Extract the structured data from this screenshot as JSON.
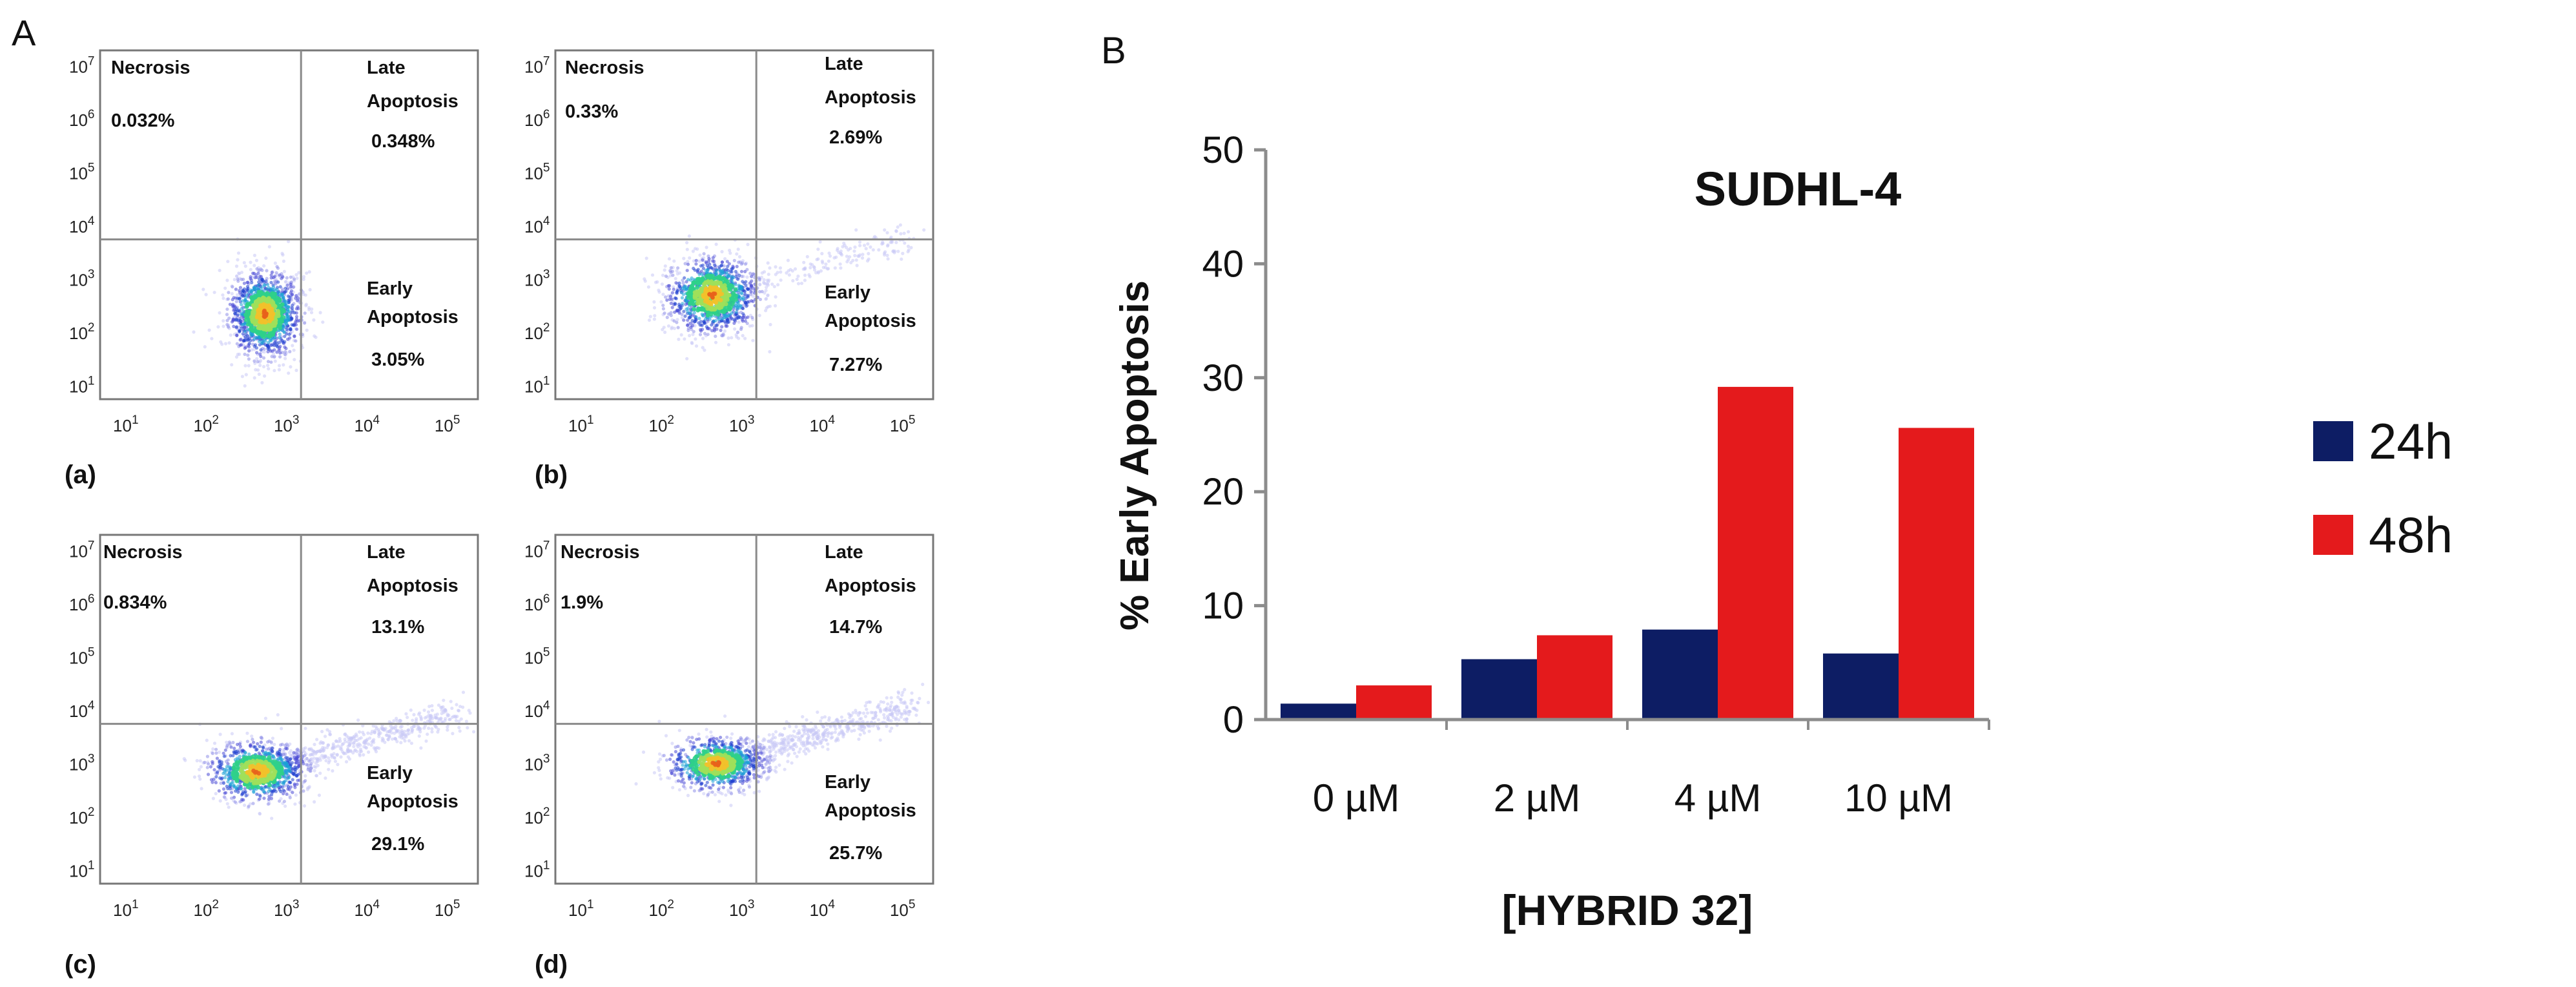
{
  "panel_a": {
    "label": "A",
    "scatter_plots": [
      {
        "sublabel": "(a)",
        "necrosis": {
          "title": "Necrosis",
          "value": "0.032%"
        },
        "late": {
          "line1": "Late",
          "line2": "Apoptosis",
          "value": "0.348%"
        },
        "early": {
          "line1": "Early",
          "line2": "Apoptosis",
          "value": "3.05%"
        },
        "cloud": {
          "center_log_x": 2.65,
          "center_log_y": 2.35,
          "spread_x": 0.22,
          "spread_y": 0.4,
          "tail": 0
        }
      },
      {
        "sublabel": "(b)",
        "necrosis": {
          "title": "Necrosis",
          "value": "0.33%"
        },
        "late": {
          "line1": "Late",
          "line2": "Apoptosis",
          "value": "2.69%"
        },
        "early": {
          "line1": "Early",
          "line2": "Apoptosis",
          "value": "7.27%"
        },
        "cloud": {
          "center_log_x": 2.55,
          "center_log_y": 2.7,
          "spread_x": 0.28,
          "spread_y": 0.35,
          "tail": 0.25
        }
      },
      {
        "sublabel": "(c)",
        "necrosis": {
          "title": "Necrosis",
          "value": "0.834%"
        },
        "late": {
          "line1": "Late",
          "line2": "Apoptosis",
          "value": "13.1%"
        },
        "early": {
          "line1": "Early",
          "line2": "Apoptosis",
          "value": "29.1%"
        },
        "cloud": {
          "center_log_x": 2.55,
          "center_log_y": 2.85,
          "spread_x": 0.3,
          "spread_y": 0.28,
          "tail": 0.7
        }
      },
      {
        "sublabel": "(d)",
        "necrosis": {
          "title": "Necrosis",
          "value": "1.9%"
        },
        "late": {
          "line1": "Late",
          "line2": "Apoptosis",
          "value": "14.7%"
        },
        "early": {
          "line1": "Early",
          "line2": "Apoptosis",
          "value": "25.7%"
        },
        "cloud": {
          "center_log_x": 2.6,
          "center_log_y": 3.0,
          "spread_x": 0.3,
          "spread_y": 0.25,
          "tail": 0.75
        }
      }
    ],
    "x_ticks": [
      {
        "base": "10",
        "exp": "1"
      },
      {
        "base": "10",
        "exp": "2"
      },
      {
        "base": "10",
        "exp": "3"
      },
      {
        "base": "10",
        "exp": "4"
      },
      {
        "base": "10",
        "exp": "5"
      }
    ],
    "y_ticks": [
      {
        "base": "10",
        "exp": "1"
      },
      {
        "base": "10",
        "exp": "2"
      },
      {
        "base": "10",
        "exp": "3"
      },
      {
        "base": "10",
        "exp": "4"
      },
      {
        "base": "10",
        "exp": "5"
      },
      {
        "base": "10",
        "exp": "6"
      },
      {
        "base": "10",
        "exp": "7"
      }
    ],
    "x_tick_exponents": [
      1,
      2,
      3,
      4,
      5
    ],
    "y_tick_exponents": [
      1,
      2,
      3,
      4,
      5,
      6,
      7
    ],
    "gate_log_x": 3.1,
    "gate_log_y": 3.75,
    "xlim": [
      0.6,
      5.3
    ],
    "ylim": [
      0.75,
      7.3
    ]
  },
  "panel_b": {
    "label": "B",
    "title": "SUDHL-4"
  },
  "chart_data": [
    {
      "type": "bar",
      "title": "SUDHL-4",
      "xlabel": "[HYBRID 32]",
      "ylabel": "% Early Apoptosis",
      "categories": [
        "0 µM",
        "2 µM",
        "4 µM",
        "10 µM"
      ],
      "series": [
        {
          "name": "24h",
          "color": "#0d1d64",
          "values": [
            1.4,
            5.3,
            7.9,
            5.8
          ]
        },
        {
          "name": "48h",
          "color": "#e41a1c",
          "values": [
            3.0,
            7.4,
            29.2,
            25.6
          ]
        }
      ],
      "ylim": [
        0,
        50
      ],
      "yticks": [
        0,
        10,
        20,
        30,
        40,
        50
      ],
      "legend": "right",
      "grid": false
    },
    {
      "type": "scatter",
      "title": "(a)",
      "xscale": "log",
      "yscale": "log",
      "quadrants": {
        "necrosis": "0.032%",
        "late_apoptosis": "0.348%",
        "early_apoptosis": "3.05%"
      }
    },
    {
      "type": "scatter",
      "title": "(b)",
      "xscale": "log",
      "yscale": "log",
      "quadrants": {
        "necrosis": "0.33%",
        "late_apoptosis": "2.69%",
        "early_apoptosis": "7.27%"
      }
    },
    {
      "type": "scatter",
      "title": "(c)",
      "xscale": "log",
      "yscale": "log",
      "quadrants": {
        "necrosis": "0.834%",
        "late_apoptosis": "13.1%",
        "early_apoptosis": "29.1%"
      }
    },
    {
      "type": "scatter",
      "title": "(d)",
      "xscale": "log",
      "yscale": "log",
      "quadrants": {
        "necrosis": "1.9%",
        "late_apoptosis": "14.7%",
        "early_apoptosis": "25.7%"
      }
    }
  ]
}
